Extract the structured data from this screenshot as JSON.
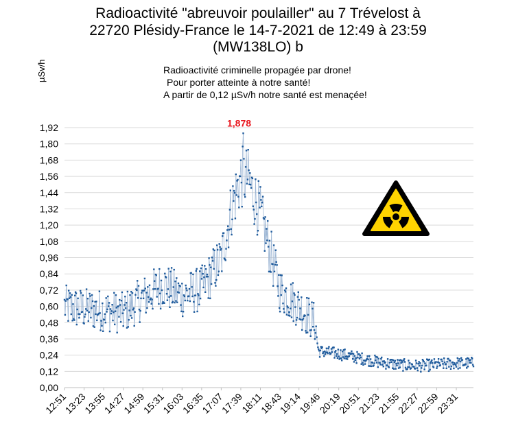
{
  "chart_data": {
    "type": "line",
    "title_lines": [
      "Radioactivité \"abreuvoir poulailler\" au 7 Trévelost à",
      "22720 Plésidy-France le 14-7-2021 de 12:49 à 23:59",
      "(MW138LO) b"
    ],
    "ylabel": "µSv/h",
    "xlabel": "",
    "annotations": [
      "Radioactivité criminelle propagée par drone!",
      "Pour porter atteinte à notre santé!",
      "A partir de 0,12 µSv/h notre santé est menaçée!"
    ],
    "peak_label": "1,878",
    "peak_color": "#e8141c",
    "series_color": "#1f5b9c",
    "warning_sign": "radiation-warning-sign",
    "warning_colors": {
      "fill": "#ffd400",
      "border": "#000000"
    },
    "grid": true,
    "ylim": [
      0,
      1.92
    ],
    "y_ticks": [
      "0,00",
      "0,12",
      "0,24",
      "0,36",
      "0,48",
      "0,60",
      "0,72",
      "0,84",
      "0,96",
      "1,08",
      "1,20",
      "1,32",
      "1,44",
      "1,56",
      "1,68",
      "1,80",
      "1,92"
    ],
    "x_ticks": [
      "12:51",
      "13:23",
      "13:55",
      "14:27",
      "14:59",
      "15:31",
      "16:03",
      "16:35",
      "17:07",
      "17:39",
      "18:11",
      "18:43",
      "19:14",
      "19:46",
      "20:19",
      "20:51",
      "21:23",
      "21:55",
      "22:27",
      "22:59",
      "23:31"
    ],
    "x_range": [
      "12:51",
      "23:59"
    ],
    "points_per_tick": 32,
    "sampling": "approximately one reading per minute",
    "trend": [
      {
        "t": "12:51",
        "y": 0.6
      },
      {
        "t": "13:23",
        "y": 0.58
      },
      {
        "t": "13:55",
        "y": 0.57
      },
      {
        "t": "14:27",
        "y": 0.55
      },
      {
        "t": "14:59",
        "y": 0.66
      },
      {
        "t": "15:31",
        "y": 0.76
      },
      {
        "t": "16:03",
        "y": 0.68
      },
      {
        "t": "16:35",
        "y": 0.73
      },
      {
        "t": "17:07",
        "y": 0.95
      },
      {
        "t": "17:25",
        "y": 1.35
      },
      {
        "t": "17:39",
        "y": 1.55
      },
      {
        "t": "17:50",
        "y": 1.55
      },
      {
        "t": "18:11",
        "y": 1.28
      },
      {
        "t": "18:30",
        "y": 0.95
      },
      {
        "t": "18:43",
        "y": 0.72
      },
      {
        "t": "19:14",
        "y": 0.6
      },
      {
        "t": "19:40",
        "y": 0.48
      },
      {
        "t": "19:46",
        "y": 0.27
      },
      {
        "t": "20:19",
        "y": 0.25
      },
      {
        "t": "20:51",
        "y": 0.22
      },
      {
        "t": "21:23",
        "y": 0.19
      },
      {
        "t": "21:55",
        "y": 0.17
      },
      {
        "t": "22:27",
        "y": 0.16
      },
      {
        "t": "22:59",
        "y": 0.17
      },
      {
        "t": "23:31",
        "y": 0.18
      },
      {
        "t": "23:59",
        "y": 0.18
      }
    ],
    "peak": {
      "t": "17:43",
      "y": 1.878
    }
  }
}
